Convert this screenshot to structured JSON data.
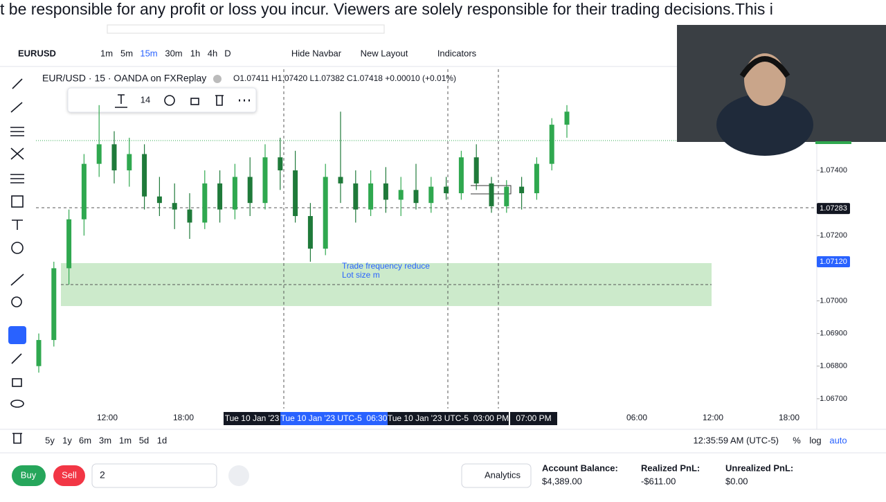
{
  "banner": "t be responsible for any profit or loss you incur. Viewers are solely responsible for their trading decisions.This i",
  "toolbar": {
    "symbol": "EURUSD",
    "intervals": [
      "1m",
      "5m",
      "15m",
      "30m",
      "1h",
      "4h",
      "D"
    ],
    "buttons": [
      "Hide Navbar",
      "New Layout",
      "Indicators"
    ]
  },
  "drawing_toolbar": {
    "font_size": "14"
  },
  "chart_data": {
    "type": "candlestick",
    "title": "EUR/USD · 15 · OANDA on FXReplay",
    "ohlc_text": "O1.07411 H1.07420 L1.07382 C1.07418 +0.00010 (+0.01%)",
    "categories": [
      null,
      null,
      null,
      null,
      null,
      null,
      null,
      null,
      null,
      null,
      null,
      null,
      null,
      null,
      null,
      null,
      null,
      null,
      null,
      null,
      null,
      null,
      null,
      null,
      null,
      null,
      null,
      null,
      null,
      null,
      null,
      null,
      null,
      null,
      null,
      null
    ],
    "open": [
      1.068,
      1.0688,
      1.071,
      1.0725,
      1.0742,
      1.0748,
      1.074,
      1.0745,
      1.0732,
      1.073,
      1.0728,
      1.0724,
      1.0736,
      1.0728,
      1.0738,
      1.073,
      1.0744,
      1.074,
      1.0726,
      1.0716,
      1.0738,
      1.0736,
      1.0728,
      1.0736,
      1.0731,
      1.0734,
      1.073,
      1.0735,
      1.0733,
      1.0744,
      1.0736,
      1.0729,
      1.0735,
      1.0733,
      1.0742,
      1.0754
    ],
    "high": [
      1.069,
      1.0712,
      1.0728,
      1.0745,
      1.076,
      1.0752,
      1.075,
      1.0748,
      1.0738,
      1.0736,
      1.0733,
      1.074,
      1.074,
      1.0742,
      1.0744,
      1.0748,
      1.075,
      1.0746,
      1.073,
      1.0742,
      1.0758,
      1.074,
      1.074,
      1.0741,
      1.0738,
      1.0742,
      1.0738,
      1.0738,
      1.0746,
      1.0748,
      1.0738,
      1.0737,
      1.0738,
      1.0744,
      1.0756,
      1.076
    ],
    "low": [
      1.0678,
      1.0686,
      1.0705,
      1.072,
      1.0738,
      1.0736,
      1.0735,
      1.0728,
      1.0726,
      1.0722,
      1.0719,
      1.0722,
      1.0724,
      1.0725,
      1.0726,
      1.0728,
      1.0734,
      1.0724,
      1.0712,
      1.0714,
      1.073,
      1.0724,
      1.0726,
      1.0727,
      1.0726,
      1.0728,
      1.0727,
      1.0731,
      1.0731,
      1.0734,
      1.0727,
      1.0727,
      1.0728,
      1.0731,
      1.074,
      1.075
    ],
    "close": [
      1.0688,
      1.071,
      1.0725,
      1.0742,
      1.0748,
      1.074,
      1.0745,
      1.0732,
      1.073,
      1.0728,
      1.0724,
      1.0736,
      1.0728,
      1.0738,
      1.073,
      1.0744,
      1.074,
      1.0726,
      1.0716,
      1.0738,
      1.0736,
      1.0728,
      1.0736,
      1.0731,
      1.0734,
      1.073,
      1.0735,
      1.0733,
      1.0744,
      1.0736,
      1.0729,
      1.0735,
      1.0733,
      1.0742,
      1.0754,
      1.0758
    ],
    "up_color": "#2fa84f",
    "down_color": "#1f7a3a",
    "ylim": [
      1.0667,
      1.0771
    ],
    "yticks": [
      {
        "value": 1.074,
        "label": "1.07400"
      },
      {
        "value": 1.072,
        "label": "1.07200"
      },
      {
        "value": 1.07,
        "label": "1.07000"
      },
      {
        "value": 1.069,
        "label": "1.06900"
      },
      {
        "value": 1.068,
        "label": "1.06800"
      },
      {
        "value": 1.067,
        "label": "1.06700"
      }
    ],
    "price_badges": [
      1.07283,
      {
        "value": 1.0712,
        "label": "1.07120"
      }
    ],
    "x_labels": [
      "12:00",
      "18:00",
      "06:00",
      "12:00",
      "18:00"
    ],
    "crosshair_labels": [
      "Tue 10 Jan '23",
      "Tue 10 Jan '23 UTC-5  06:30",
      "Tue 10 Jan '23 UTC-5  03:00 PM",
      "07:00 PM"
    ],
    "annotation": [
      "Trade frequency reduce",
      "Lot size m"
    ]
  },
  "range_bar": {
    "ranges": [
      "5y",
      "1y",
      "6m",
      "3m",
      "1m",
      "5d",
      "1d"
    ],
    "clock": "12:35:59 AM (UTC-5)",
    "options": [
      "%",
      "log",
      "auto"
    ]
  },
  "footer": {
    "buy": "Buy",
    "sell": "Sell",
    "quantity": "2",
    "analytics": "Analytics",
    "stats": [
      {
        "label": "Account Balance:",
        "value": "$4,389.00"
      },
      {
        "label": "Realized PnL:",
        "value": "-$611.00"
      },
      {
        "label": "Unrealized PnL:",
        "value": "$0.00"
      }
    ]
  }
}
